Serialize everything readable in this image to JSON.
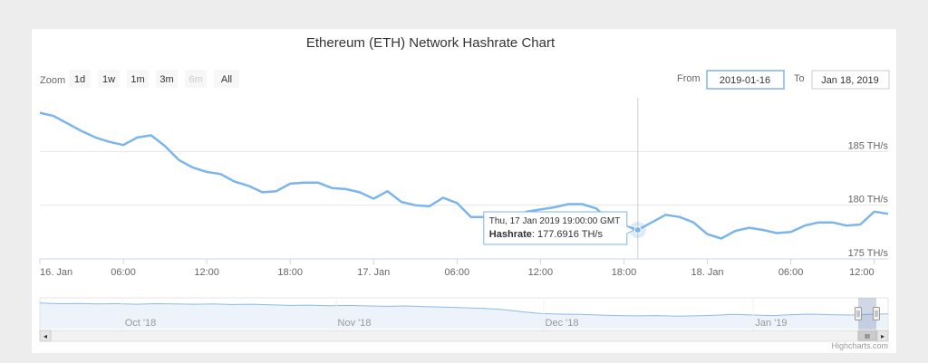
{
  "chart_data": {
    "type": "line",
    "title": "Ethereum (ETH) Network Hashrate Chart",
    "series": [
      {
        "name": "Hashrate",
        "color": "#7cb5ec",
        "x": [
          0,
          1,
          2,
          3,
          4,
          5,
          6,
          7,
          8,
          9,
          10,
          11,
          12,
          13,
          14,
          15,
          16,
          17,
          18,
          19,
          20,
          21,
          22,
          23,
          24,
          25,
          26,
          27,
          28,
          29,
          30,
          31,
          32,
          33,
          34,
          35,
          36,
          37,
          38,
          39,
          40,
          41,
          42,
          43,
          44,
          45,
          46,
          47,
          48,
          49,
          50,
          51,
          52,
          53,
          54,
          55,
          56,
          57,
          58,
          59,
          60,
          61
        ],
        "y": [
          188.6,
          188.3,
          187.6,
          186.9,
          186.3,
          185.9,
          185.6,
          186.3,
          186.5,
          185.5,
          184.2,
          183.5,
          183.1,
          182.9,
          182.2,
          181.8,
          181.2,
          181.3,
          182.0,
          182.1,
          182.1,
          181.6,
          181.5,
          181.2,
          180.6,
          181.3,
          180.3,
          180.0,
          179.9,
          180.7,
          180.2,
          178.9,
          178.9,
          178.6,
          178.6,
          179.4,
          179.6,
          179.8,
          180.1,
          180.1,
          179.7,
          178.5,
          178.1,
          177.7,
          178.4,
          179.1,
          178.9,
          178.4,
          177.3,
          176.9,
          177.6,
          177.9,
          177.7,
          177.4,
          177.5,
          178.1,
          178.4,
          178.4,
          178.1,
          178.2,
          179.4,
          179.2
        ]
      }
    ],
    "x_axis": {
      "tick_labels": [
        "16. Jan",
        "06:00",
        "12:00",
        "18:00",
        "17. Jan",
        "06:00",
        "12:00",
        "18:00",
        "18. Jan",
        "06:00",
        "12:00"
      ],
      "tick_positions_hours": [
        0,
        6,
        12,
        18,
        24,
        30,
        36,
        42,
        48,
        54,
        60
      ]
    },
    "y_axis": {
      "tick_labels": [
        "175 TH/s",
        "180 TH/s",
        "185 TH/s"
      ],
      "tick_values": [
        175,
        180,
        185
      ],
      "range": [
        175,
        190
      ],
      "grid": true
    },
    "tooltip": {
      "date_text": "Thu, 17 Jan 2019 19:00:00 GMT",
      "series_label": "Hashrate",
      "value_text": "177.6916 TH/s",
      "x": 43,
      "y": 177.6916
    },
    "navigator": {
      "tick_labels": [
        "Oct '18",
        "Nov '18",
        "Dec '18",
        "Jan '19"
      ]
    }
  },
  "range_selector": {
    "zoom_label": "Zoom",
    "buttons": [
      {
        "label": "1d",
        "disabled": false
      },
      {
        "label": "1w",
        "disabled": false
      },
      {
        "label": "1m",
        "disabled": false
      },
      {
        "label": "3m",
        "disabled": false
      },
      {
        "label": "6m",
        "disabled": true
      },
      {
        "label": "All",
        "disabled": false
      }
    ],
    "from_label": "From",
    "from_value": "2019-01-16",
    "to_label": "To",
    "to_value": "Jan 18, 2019"
  },
  "scrollbar": {
    "left_arrow": "◂",
    "right_arrow": "▸",
    "grip": "III"
  },
  "credits": "Highcharts.com"
}
